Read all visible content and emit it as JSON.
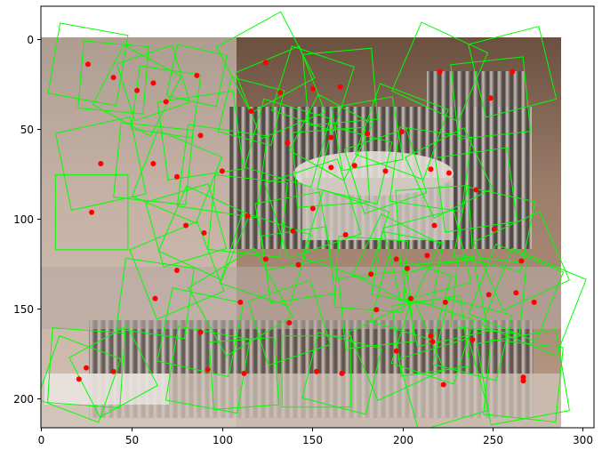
{
  "figure": {
    "background": "#ffffff",
    "x_ticks": [
      "0",
      "50",
      "100",
      "150",
      "200",
      "250",
      "300"
    ],
    "y_ticks": [
      "0",
      "50",
      "100",
      "150",
      "200"
    ],
    "xlim": [
      0,
      305
    ],
    "ylim": [
      217,
      -8
    ],
    "image_extent": [
      0,
      289,
      0,
      212
    ],
    "box_color": "#00ff00",
    "point_color": "#ff0000"
  },
  "photo": {
    "subject": "pipe-organ photograph",
    "palette": {
      "wall": "#8d6e5a",
      "wall_light": "#c9a894",
      "pipes": "#a39a95",
      "pipes_dark": "#57504c",
      "console": "#d8d2cd",
      "floor": "#c4b7ad"
    }
  },
  "keypoints": [
    {
      "x": 26,
      "y": 23,
      "size": 38,
      "angle": 10
    },
    {
      "x": 40,
      "y": 30,
      "size": 36,
      "angle": 5
    },
    {
      "x": 62,
      "y": 33,
      "size": 32,
      "angle": -18
    },
    {
      "x": 86,
      "y": 29,
      "size": 28,
      "angle": 12
    },
    {
      "x": 124,
      "y": 22,
      "size": 40,
      "angle": -28
    },
    {
      "x": 150,
      "y": 36,
      "size": 36,
      "angle": 18
    },
    {
      "x": 165,
      "y": 35,
      "size": 38,
      "angle": -5
    },
    {
      "x": 220,
      "y": 27,
      "size": 40,
      "angle": 24
    },
    {
      "x": 260,
      "y": 27,
      "size": 40,
      "angle": -14
    },
    {
      "x": 53,
      "y": 37,
      "size": 36,
      "angle": 28
    },
    {
      "x": 69,
      "y": 43,
      "size": 34,
      "angle": 8
    },
    {
      "x": 132,
      "y": 38,
      "size": 38,
      "angle": -22
    },
    {
      "x": 116,
      "y": 48,
      "size": 30,
      "angle": 14
    },
    {
      "x": 248,
      "y": 41,
      "size": 40,
      "angle": -6
    },
    {
      "x": 199,
      "y": 59,
      "size": 40,
      "angle": 20
    },
    {
      "x": 180,
      "y": 60,
      "size": 34,
      "angle": -10
    },
    {
      "x": 88,
      "y": 61,
      "size": 42,
      "angle": -8
    },
    {
      "x": 136,
      "y": 65,
      "size": 38,
      "angle": 16
    },
    {
      "x": 33,
      "y": 76,
      "size": 42,
      "angle": -12
    },
    {
      "x": 62,
      "y": 76,
      "size": 40,
      "angle": 6
    },
    {
      "x": 75,
      "y": 83,
      "size": 38,
      "angle": 22
    },
    {
      "x": 160,
      "y": 62,
      "size": 34,
      "angle": 28
    },
    {
      "x": 160,
      "y": 78,
      "size": 40,
      "angle": -4
    },
    {
      "x": 173,
      "y": 77,
      "size": 34,
      "angle": 14
    },
    {
      "x": 190,
      "y": 80,
      "size": 36,
      "angle": -18
    },
    {
      "x": 215,
      "y": 79,
      "size": 40,
      "angle": 8
    },
    {
      "x": 225,
      "y": 81,
      "size": 36,
      "angle": -26
    },
    {
      "x": 28,
      "y": 102,
      "size": 40,
      "angle": 0
    },
    {
      "x": 80,
      "y": 109,
      "size": 36,
      "angle": -16
    },
    {
      "x": 90,
      "y": 113,
      "size": 38,
      "angle": 24
    },
    {
      "x": 114,
      "y": 104,
      "size": 40,
      "angle": 6
    },
    {
      "x": 139,
      "y": 112,
      "size": 36,
      "angle": -10
    },
    {
      "x": 168,
      "y": 114,
      "size": 38,
      "angle": 18
    },
    {
      "x": 217,
      "y": 109,
      "size": 40,
      "angle": -4
    },
    {
      "x": 250,
      "y": 111,
      "size": 38,
      "angle": 12
    },
    {
      "x": 265,
      "y": 128,
      "size": 40,
      "angle": -24
    },
    {
      "x": 124,
      "y": 127,
      "size": 40,
      "angle": 18
    },
    {
      "x": 142,
      "y": 130,
      "size": 36,
      "angle": -8
    },
    {
      "x": 182,
      "y": 135,
      "size": 38,
      "angle": 4
    },
    {
      "x": 196,
      "y": 127,
      "size": 36,
      "angle": 26
    },
    {
      "x": 213,
      "y": 125,
      "size": 40,
      "angle": -14
    },
    {
      "x": 202,
      "y": 132,
      "size": 34,
      "angle": 10
    },
    {
      "x": 75,
      "y": 133,
      "size": 40,
      "angle": -22
    },
    {
      "x": 63,
      "y": 148,
      "size": 38,
      "angle": 8
    },
    {
      "x": 185,
      "y": 154,
      "size": 38,
      "angle": -6
    },
    {
      "x": 204,
      "y": 148,
      "size": 36,
      "angle": 16
    },
    {
      "x": 223,
      "y": 150,
      "size": 40,
      "angle": -12
    },
    {
      "x": 247,
      "y": 146,
      "size": 38,
      "angle": 6
    },
    {
      "x": 262,
      "y": 145,
      "size": 40,
      "angle": 22
    },
    {
      "x": 137,
      "y": 161,
      "size": 36,
      "angle": -18
    },
    {
      "x": 88,
      "y": 166,
      "size": 40,
      "angle": 12
    },
    {
      "x": 215,
      "y": 168,
      "size": 38,
      "angle": -8
    },
    {
      "x": 216,
      "y": 171,
      "size": 36,
      "angle": 18
    },
    {
      "x": 25,
      "y": 185,
      "size": 40,
      "angle": 4
    },
    {
      "x": 40,
      "y": 187,
      "size": 36,
      "angle": -28
    },
    {
      "x": 92,
      "y": 186,
      "size": 40,
      "angle": 10
    },
    {
      "x": 112,
      "y": 188,
      "size": 36,
      "angle": -4
    },
    {
      "x": 152,
      "y": 187,
      "size": 38,
      "angle": 0
    },
    {
      "x": 166,
      "y": 188,
      "size": 36,
      "angle": 14
    },
    {
      "x": 222,
      "y": 194,
      "size": 40,
      "angle": -16
    },
    {
      "x": 266,
      "y": 192,
      "size": 40,
      "angle": 6
    },
    {
      "x": 266,
      "y": 190,
      "size": 44,
      "angle": -10
    },
    {
      "x": 21,
      "y": 191,
      "size": 36,
      "angle": 20
    },
    {
      "x": 196,
      "y": 176,
      "size": 40,
      "angle": -24
    },
    {
      "x": 238,
      "y": 170,
      "size": 36,
      "angle": 14
    },
    {
      "x": 110,
      "y": 150,
      "size": 42,
      "angle": -30
    },
    {
      "x": 240,
      "y": 90,
      "size": 40,
      "angle": -8
    },
    {
      "x": 272,
      "y": 150,
      "size": 44,
      "angle": 22
    },
    {
      "x": 150,
      "y": 100,
      "size": 42,
      "angle": -18
    },
    {
      "x": 100,
      "y": 80,
      "size": 44,
      "angle": 8
    }
  ]
}
